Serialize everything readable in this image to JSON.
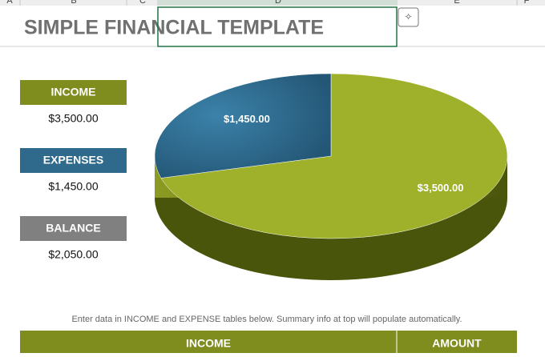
{
  "sheet": {
    "column_headers": [
      "A",
      "B",
      "C",
      "D",
      "E",
      "F"
    ]
  },
  "header": {
    "title": "SIMPLE FINANCIAL TEMPLATE"
  },
  "summary": [
    {
      "label": "INCOME",
      "amount": "$3,500.00"
    },
    {
      "label": "EXPENSES",
      "amount": "$1,450.00"
    },
    {
      "label": "BALANCE",
      "amount": "$2,050.00"
    }
  ],
  "chart_data": {
    "type": "pie",
    "values": [
      3500,
      1450
    ],
    "value_labels": [
      "$3,500.00",
      "$1,450.00"
    ],
    "colors": [
      "#9fb12a",
      "#2f6a8c"
    ]
  },
  "note": "Enter data in INCOME and EXPENSE tables below. Summary info at top will populate automatically.",
  "table": {
    "headers": [
      "INCOME",
      "AMOUNT"
    ]
  }
}
